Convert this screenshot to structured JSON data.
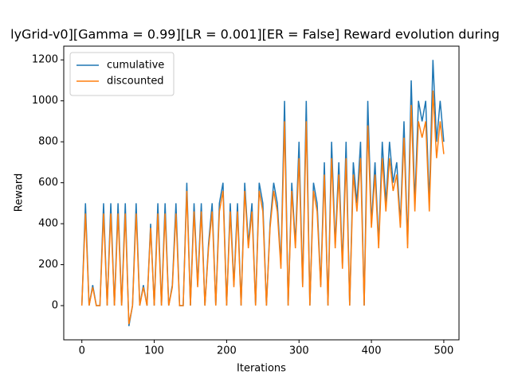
{
  "chart_data": {
    "type": "line",
    "title": "lyGrid-v0][Gamma = 0.99][LR = 0.001][ER = False] Reward evolution during",
    "x_label": "Iterations",
    "y_label": "Reward",
    "x": [
      0,
      5,
      10,
      15,
      20,
      25,
      30,
      35,
      40,
      45,
      50,
      55,
      60,
      65,
      70,
      75,
      80,
      85,
      90,
      95,
      100,
      105,
      110,
      115,
      120,
      125,
      130,
      135,
      140,
      145,
      150,
      155,
      160,
      165,
      170,
      175,
      180,
      185,
      190,
      195,
      200,
      205,
      210,
      215,
      220,
      225,
      230,
      235,
      240,
      245,
      250,
      255,
      260,
      265,
      270,
      275,
      280,
      285,
      290,
      295,
      300,
      305,
      310,
      315,
      320,
      325,
      330,
      335,
      340,
      345,
      350,
      355,
      360,
      365,
      370,
      375,
      380,
      385,
      390,
      395,
      400,
      405,
      410,
      415,
      420,
      425,
      430,
      435,
      440,
      445,
      450,
      455,
      460,
      465,
      470,
      475,
      480,
      485,
      490,
      495,
      500
    ],
    "series": [
      {
        "name": "cumulative",
        "color": "#1f77b4",
        "values": [
          0,
          500,
          0,
          100,
          0,
          0,
          500,
          0,
          500,
          0,
          500,
          0,
          500,
          -100,
          0,
          500,
          0,
          100,
          0,
          400,
          0,
          500,
          0,
          500,
          0,
          100,
          500,
          0,
          0,
          600,
          0,
          500,
          100,
          500,
          0,
          300,
          500,
          0,
          500,
          600,
          0,
          500,
          100,
          500,
          0,
          600,
          300,
          500,
          0,
          600,
          500,
          0,
          400,
          600,
          500,
          200,
          1000,
          0,
          600,
          300,
          800,
          100,
          1000,
          0,
          600,
          500,
          100,
          700,
          0,
          800,
          300,
          700,
          200,
          800,
          0,
          700,
          500,
          800,
          0,
          1000,
          400,
          700,
          300,
          800,
          500,
          800,
          600,
          700,
          400,
          900,
          300,
          1100,
          500,
          1000,
          900,
          1000,
          500,
          1200,
          800,
          1000,
          800
        ]
      },
      {
        "name": "discounted",
        "color": "#ff7f0e",
        "values": [
          0,
          450,
          0,
          90,
          0,
          0,
          450,
          0,
          450,
          0,
          450,
          0,
          450,
          -90,
          0,
          450,
          0,
          90,
          0,
          380,
          0,
          450,
          0,
          450,
          0,
          90,
          450,
          0,
          0,
          560,
          0,
          460,
          90,
          460,
          0,
          280,
          460,
          0,
          460,
          560,
          0,
          460,
          90,
          460,
          0,
          560,
          280,
          460,
          0,
          560,
          460,
          0,
          380,
          560,
          460,
          180,
          900,
          0,
          560,
          280,
          720,
          90,
          900,
          0,
          560,
          460,
          90,
          640,
          0,
          720,
          280,
          640,
          180,
          720,
          0,
          640,
          460,
          720,
          0,
          880,
          380,
          640,
          280,
          720,
          460,
          720,
          560,
          640,
          380,
          820,
          280,
          980,
          460,
          900,
          820,
          900,
          460,
          1050,
          720,
          900,
          740
        ]
      }
    ],
    "xlim": [
      -25,
      521
    ],
    "ylim": [
      -167,
      1267
    ],
    "xticks": [
      0,
      100,
      200,
      300,
      400,
      500
    ],
    "yticks": [
      0,
      200,
      400,
      600,
      800,
      1000,
      1200
    ],
    "legend": "upper left"
  }
}
